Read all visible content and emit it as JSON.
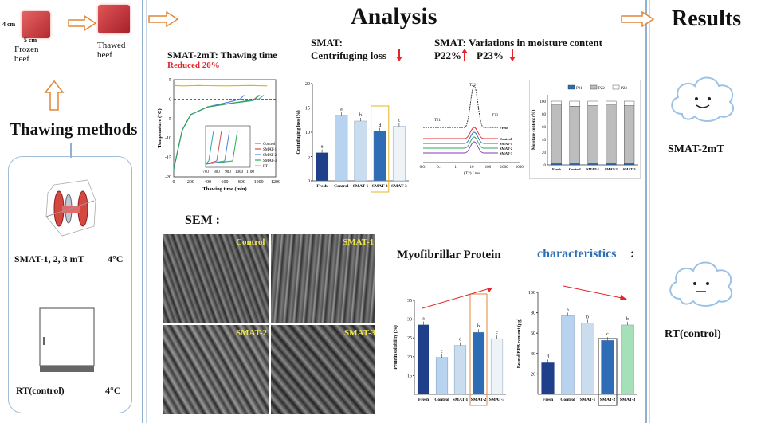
{
  "headings": {
    "analysis": "Analysis",
    "results": "Results"
  },
  "left": {
    "dim_h": "4 cm",
    "dim_w": "5 cm",
    "frozen_label": "Frozen\nbeef",
    "thawed_label": "Thawed\nbeef",
    "thawing_title": "Thawing methods",
    "smat_label": "SMAT-1, 2, 3 mT",
    "smat_temp": "4°C",
    "rt_label": "RT(control)",
    "rt_temp": "4°C"
  },
  "analysis": {
    "thaw_title": "SMAT-2mT: Thawing time",
    "thaw_reduced": "Reduced 20%",
    "smat1": "SMAT:",
    "centrifuging": "Centrifuging loss",
    "smat2": "SMAT: Variations in moisture content",
    "p22": "P22%",
    "p23": "P23%",
    "sem": "SEM :",
    "myo1": "Myofibrillar Protein",
    "myo2": "characteristics",
    "myo_colon": ":",
    "sem_labels": [
      "Control",
      "SMAT-1",
      "SMAT-2",
      "SMAT-3"
    ]
  },
  "results": {
    "smat": "SMAT-2mT",
    "rt": "RT(control)"
  },
  "colors": {
    "accent_red": "#e3262b",
    "accent_blue": "#2c6fb5",
    "divider": "#8fb0cf"
  },
  "chart_data": [
    {
      "type": "line",
      "xlabel": "Thawing time (min)",
      "ylabel": "Temperature (°C)",
      "xlim": [
        0,
        1200
      ],
      "ylim": [
        -20,
        5
      ],
      "x_ticks": [
        "0",
        "200",
        "400",
        "600",
        "800",
        "1000",
        "1200"
      ],
      "y_ticks": [
        "5",
        "0",
        "-5",
        "-10",
        "-15",
        "-20"
      ],
      "legend": [
        "Control",
        "SMAT-1",
        "SMAT-2",
        "SMAT-3",
        "RT"
      ],
      "series": [
        {
          "name": "Control",
          "color": "#2da8a8",
          "x": [
            0,
            100,
            200,
            400,
            700,
            900,
            1000,
            1060
          ],
          "y": [
            -18,
            -8,
            -4,
            -2,
            -1,
            -0.5,
            0,
            1
          ]
        },
        {
          "name": "SMAT-1",
          "color": "#d04e4e",
          "x": [
            0,
            100,
            200,
            400,
            700,
            850,
            950,
            1000
          ],
          "y": [
            -18,
            -8,
            -4,
            -2,
            -1,
            -0.5,
            0,
            1
          ]
        },
        {
          "name": "SMAT-2",
          "color": "#4f7ee0",
          "x": [
            0,
            100,
            200,
            400,
            600,
            700,
            780,
            830
          ],
          "y": [
            -18,
            -8,
            -4,
            -2,
            -1,
            -0.5,
            0,
            1
          ]
        },
        {
          "name": "SMAT-3",
          "color": "#29a95a",
          "x": [
            0,
            100,
            200,
            400,
            700,
            850,
            960,
            1010
          ],
          "y": [
            -18,
            -8,
            -4,
            -2,
            -1,
            -0.5,
            0,
            1
          ]
        },
        {
          "name": "RT",
          "color": "#d9b326",
          "x": [
            0,
            100,
            300,
            600,
            900,
            1100
          ],
          "y": [
            3.5,
            3.4,
            3.5,
            3.4,
            3.5,
            3.4
          ]
        }
      ],
      "inset_x_ticks": [
        "700",
        "800",
        "900",
        "1000",
        "1100"
      ]
    },
    {
      "type": "bar",
      "ylabel": "Centrifuging loss (%)",
      "categories": [
        "Fresh",
        "Control",
        "SMAT-1",
        "SMAT-2",
        "SMAT-3"
      ],
      "values": [
        5.8,
        13.5,
        12.3,
        10.2,
        11.2
      ],
      "letters": [
        "e",
        "a",
        "b",
        "d",
        "c"
      ],
      "ylim": [
        0,
        20
      ],
      "y_ticks": [
        "0",
        "5",
        "10",
        "15",
        "20"
      ],
      "colors": [
        "#1f3f8a",
        "#b8d3ef",
        "#c9ddee",
        "#2f6cb6",
        "#eef3f8"
      ]
    },
    {
      "type": "line",
      "xlabel": "(T2) / ms",
      "x_ticks": [
        "0.01",
        "0.1",
        "1",
        "10",
        "100",
        "1000",
        "10000"
      ],
      "legend": [
        "Fresh",
        "Control",
        "SMAT-1",
        "SMAT-2",
        "SMAT-3"
      ],
      "annotations": [
        "T21",
        "T22",
        "T23"
      ]
    },
    {
      "type": "bar",
      "ylabel": "Moisture content (%)",
      "categories": [
        "Fresh",
        "Control",
        "SMAT-1",
        "SMAT-2",
        "SMAT-3"
      ],
      "legend": [
        "P21",
        "P22",
        "P23"
      ],
      "series": [
        {
          "name": "P21",
          "values": [
            3,
            3,
            3,
            3,
            3
          ]
        },
        {
          "name": "P22",
          "values": [
            91,
            89,
            90,
            91,
            90
          ]
        },
        {
          "name": "P23",
          "values": [
            6,
            8,
            7,
            6,
            7
          ]
        }
      ],
      "ylim": [
        0,
        110
      ],
      "y_ticks": [
        "0",
        "20",
        "40",
        "60",
        "80",
        "100"
      ]
    },
    {
      "type": "bar",
      "ylabel": "Protein solubility (%)",
      "categories": [
        "Fresh",
        "Control",
        "SMAT-1",
        "SMAT-2",
        "SMAT-3"
      ],
      "values": [
        28.5,
        19.8,
        23.0,
        26.5,
        24.8
      ],
      "letters": [
        "a",
        "e",
        "d",
        "b",
        "c"
      ],
      "ylim": [
        10,
        35
      ],
      "y_ticks": [
        "15",
        "20",
        "25",
        "30",
        "35"
      ],
      "colors": [
        "#1f3f8a",
        "#b8d3ef",
        "#c9ddee",
        "#2f6cb6",
        "#eef3f8"
      ]
    },
    {
      "type": "bar",
      "ylabel": "Bound BPB content (μg)",
      "categories": [
        "Fresh",
        "Control",
        "SMAT-1",
        "SMAT-2",
        "SMAT-3"
      ],
      "values": [
        31,
        77,
        70,
        53,
        68
      ],
      "letters": [
        "d",
        "a",
        "b",
        "c",
        "b"
      ],
      "ylim": [
        0,
        100
      ],
      "y_ticks": [
        "20",
        "40",
        "60",
        "80",
        "100"
      ],
      "colors": [
        "#1f3f8a",
        "#b8d3ef",
        "#c9ddee",
        "#2f6cb6",
        "#a6e0b8"
      ]
    }
  ]
}
